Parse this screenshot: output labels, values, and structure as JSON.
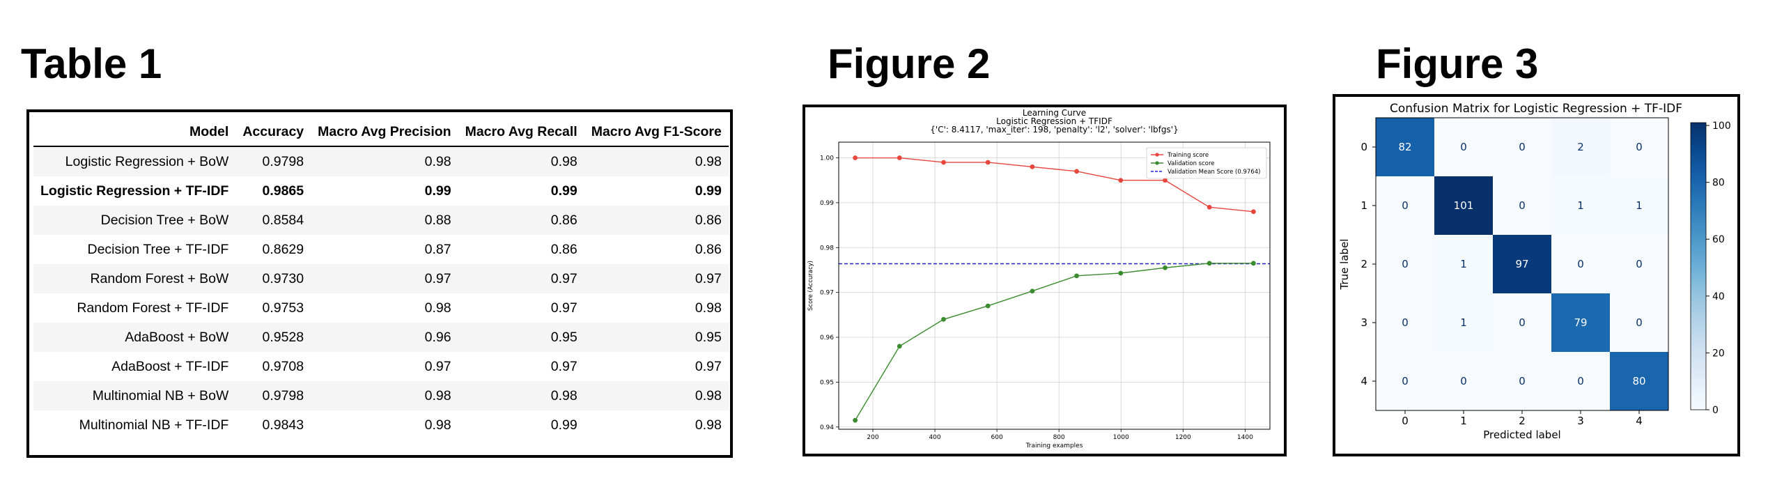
{
  "headings": {
    "table": "Table 1",
    "figure2": "Figure 2",
    "figure3": "Figure 3"
  },
  "table": {
    "columns": [
      "Model",
      "Accuracy",
      "Macro Avg Precision",
      "Macro Avg Recall",
      "Macro Avg F1-Score"
    ],
    "rows": [
      [
        "Logistic Regression + BoW",
        "0.9798",
        "0.98",
        "0.98",
        "0.98"
      ],
      [
        "Logistic Regression + TF-IDF",
        "0.9865",
        "0.99",
        "0.99",
        "0.99"
      ],
      [
        "Decision Tree + BoW",
        "0.8584",
        "0.88",
        "0.86",
        "0.86"
      ],
      [
        "Decision Tree + TF-IDF",
        "0.8629",
        "0.87",
        "0.86",
        "0.86"
      ],
      [
        "Random Forest + BoW",
        "0.9730",
        "0.97",
        "0.97",
        "0.97"
      ],
      [
        "Random Forest + TF-IDF",
        "0.9753",
        "0.98",
        "0.97",
        "0.98"
      ],
      [
        "AdaBoost + BoW",
        "0.9528",
        "0.96",
        "0.95",
        "0.95"
      ],
      [
        "AdaBoost + TF-IDF",
        "0.9708",
        "0.97",
        "0.97",
        "0.97"
      ],
      [
        "Multinomial NB + BoW",
        "0.9798",
        "0.98",
        "0.98",
        "0.98"
      ],
      [
        "Multinomial NB + TF-IDF",
        "0.9843",
        "0.98",
        "0.99",
        "0.98"
      ]
    ],
    "bold_row": 1
  },
  "chart_data": [
    {
      "type": "line",
      "title": "Learning Curve",
      "subtitle": "Logistic Regression + TFIDF",
      "params": "{'C': 8.4117, 'max_iter': 198, 'penalty': 'l2', 'solver': 'lbfgs'}",
      "xlabel": "Training examples",
      "ylabel": "Score (Accuracy)",
      "xlim": [
        90,
        1480
      ],
      "ylim": [
        0.9395,
        1.0035
      ],
      "xticks": [
        200,
        400,
        600,
        800,
        1000,
        1200,
        1400
      ],
      "yticks": [
        0.94,
        0.95,
        0.96,
        0.97,
        0.98,
        0.99,
        1.0
      ],
      "ytick_labels": [
        "0.94",
        "0.95",
        "0.96",
        "0.97",
        "0.98",
        "0.99",
        "1.00"
      ],
      "grid": true,
      "legend_position": "top-right",
      "x": [
        143,
        286,
        428,
        571,
        714,
        857,
        999,
        1142,
        1285,
        1427
      ],
      "series": [
        {
          "name": "Training score",
          "color": "#e8453c",
          "marker": "circle",
          "values": [
            1.0,
            1.0,
            0.999,
            0.999,
            0.998,
            0.997,
            0.995,
            0.995,
            0.989,
            0.988
          ]
        },
        {
          "name": "Validation score",
          "color": "#3a8a2e",
          "marker": "circle",
          "values": [
            0.9415,
            0.958,
            0.964,
            0.967,
            0.9703,
            0.9737,
            0.9743,
            0.9755,
            0.9765,
            0.9765
          ]
        }
      ],
      "reference_line": {
        "name": "Validation Mean Score (0.9764)",
        "value": 0.9764,
        "color": "#2222cc",
        "style": "dashed"
      }
    },
    {
      "type": "heatmap",
      "title": "Confusion Matrix for Logistic Regression + TF-IDF",
      "xlabel": "Predicted label",
      "ylabel": "True label",
      "labels": [
        "0",
        "1",
        "2",
        "3",
        "4"
      ],
      "matrix": [
        [
          82,
          0,
          0,
          2,
          0
        ],
        [
          0,
          101,
          0,
          1,
          1
        ],
        [
          0,
          1,
          97,
          0,
          0
        ],
        [
          0,
          1,
          0,
          79,
          0
        ],
        [
          0,
          0,
          0,
          0,
          80
        ]
      ],
      "colormap": "Blues",
      "colorbar_ticks": [
        0,
        20,
        40,
        60,
        80,
        100
      ],
      "vmin": 0,
      "vmax": 101
    }
  ]
}
